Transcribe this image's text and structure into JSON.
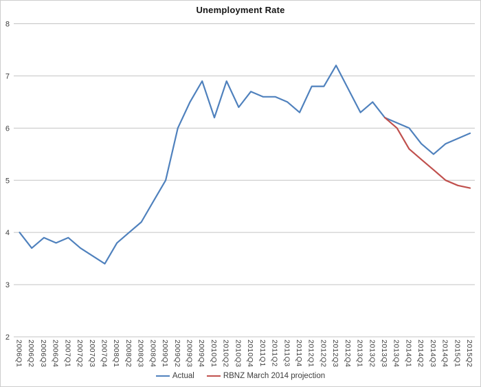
{
  "chart_data": {
    "type": "line",
    "title": "Unemployment Rate",
    "categories": [
      "2006Q1",
      "2006Q2",
      "2006Q3",
      "2006Q4",
      "2007Q1",
      "2007Q2",
      "2007Q3",
      "2007Q4",
      "2008Q1",
      "2008Q2",
      "2008Q3",
      "2008Q4",
      "2009Q1",
      "2009Q2",
      "2009Q3",
      "2009Q4",
      "2010Q1",
      "2010Q2",
      "2010Q3",
      "2010Q4",
      "2011Q1",
      "2011Q2",
      "2011Q3",
      "2011Q4",
      "2012Q1",
      "2012Q2",
      "2012Q3",
      "2012Q4",
      "2013Q1",
      "2013Q2",
      "2013Q3",
      "2013Q4",
      "2014Q1",
      "2014Q2",
      "2014Q3",
      "2014Q4",
      "2015Q1",
      "2015Q2"
    ],
    "series": [
      {
        "name": "Actual",
        "color": "#4F81BD",
        "values": [
          4.0,
          3.7,
          3.9,
          3.8,
          3.9,
          3.7,
          3.55,
          3.4,
          3.8,
          4.0,
          4.2,
          4.6,
          5.0,
          6.0,
          6.5,
          6.9,
          6.2,
          6.9,
          6.4,
          6.7,
          6.6,
          6.6,
          6.5,
          6.3,
          6.8,
          6.8,
          7.2,
          6.75,
          6.3,
          6.5,
          6.2,
          6.1,
          6.0,
          5.7,
          5.5,
          5.7,
          5.8,
          5.9
        ]
      },
      {
        "name": "RBNZ March 2014 projection",
        "color": "#C0504D",
        "values": [
          null,
          null,
          null,
          null,
          null,
          null,
          null,
          null,
          null,
          null,
          null,
          null,
          null,
          null,
          null,
          null,
          null,
          null,
          null,
          null,
          null,
          null,
          null,
          null,
          null,
          null,
          null,
          null,
          null,
          null,
          6.2,
          6.0,
          5.6,
          5.4,
          5.2,
          5.0,
          4.9,
          4.85
        ]
      }
    ],
    "ylim": [
      2,
      8
    ],
    "ytick_step": 1,
    "yticks": [
      2,
      3,
      4,
      5,
      6,
      7,
      8
    ],
    "grid": "horizontal",
    "gridline_color": "#c3c3c3",
    "legend_position": "bottom",
    "x_label_rotation_deg": 90
  }
}
